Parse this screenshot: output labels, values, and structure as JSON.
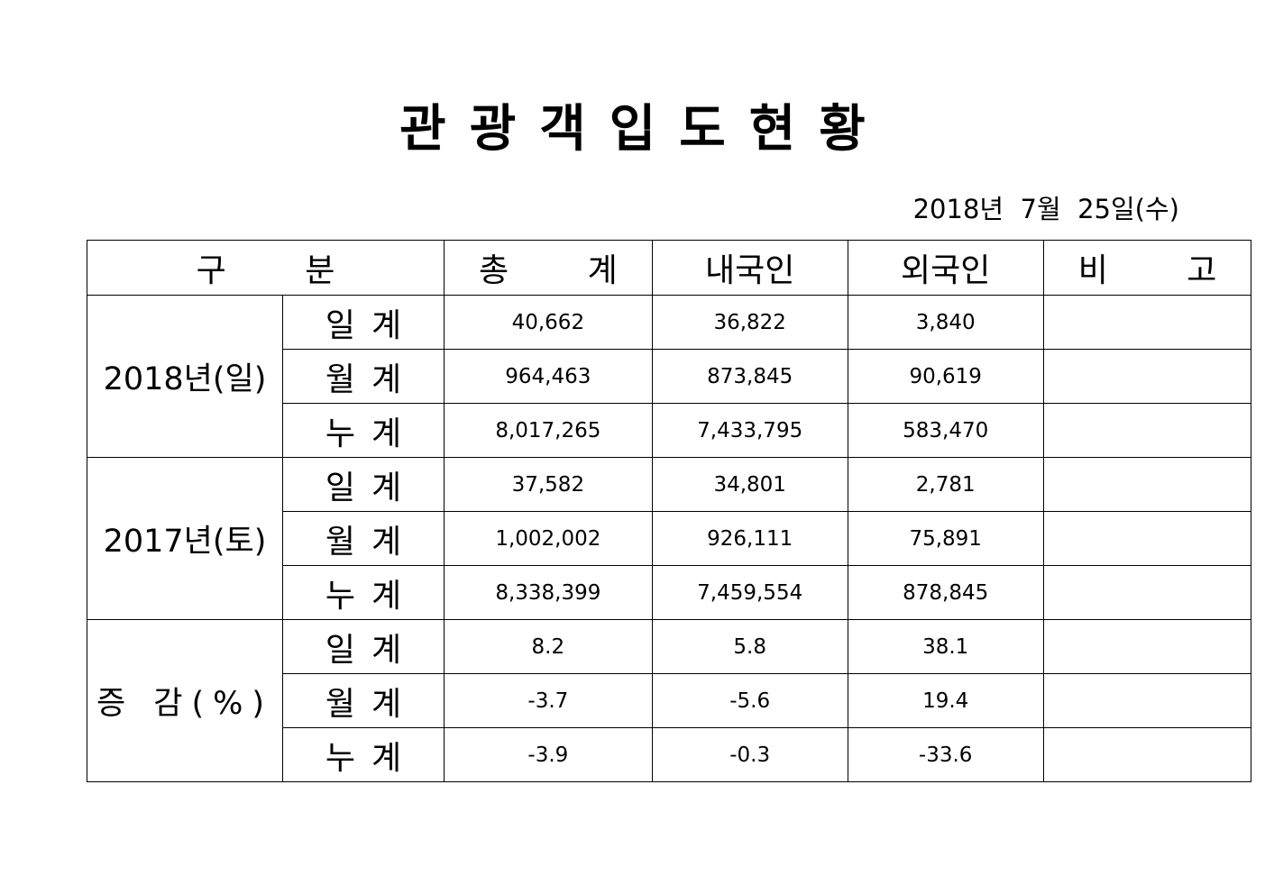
{
  "document": {
    "title": "관광객입도현황",
    "date": "2018년  7월  25일(수)"
  },
  "table": {
    "headers": {
      "category": "구 분",
      "total": "총 계",
      "domestic": "내국인",
      "foreign": "외국인",
      "note": "비 고"
    },
    "groups": [
      {
        "label": "2018년(일)",
        "rows": [
          {
            "sub": "일계",
            "total": "40,662",
            "domestic": "36,822",
            "foreign": "3,840",
            "note": ""
          },
          {
            "sub": "월계",
            "total": "964,463",
            "domestic": "873,845",
            "foreign": "90,619",
            "note": ""
          },
          {
            "sub": "누계",
            "total": "8,017,265",
            "domestic": "7,433,795",
            "foreign": "583,470",
            "note": ""
          }
        ]
      },
      {
        "label": "2017년(토)",
        "rows": [
          {
            "sub": "일계",
            "total": "37,582",
            "domestic": "34,801",
            "foreign": "2,781",
            "note": ""
          },
          {
            "sub": "월계",
            "total": "1,002,002",
            "domestic": "926,111",
            "foreign": "75,891",
            "note": ""
          },
          {
            "sub": "누계",
            "total": "8,338,399",
            "domestic": "7,459,554",
            "foreign": "878,845",
            "note": ""
          }
        ]
      },
      {
        "label": "증 감(%)",
        "rows": [
          {
            "sub": "일계",
            "total": "8.2",
            "domestic": "5.8",
            "foreign": "38.1",
            "note": ""
          },
          {
            "sub": "월계",
            "total": "-3.7",
            "domestic": "-5.6",
            "foreign": "19.4",
            "note": ""
          },
          {
            "sub": "누계",
            "total": "-3.9",
            "domestic": "-0.3",
            "foreign": "-33.6",
            "note": ""
          }
        ]
      }
    ]
  }
}
